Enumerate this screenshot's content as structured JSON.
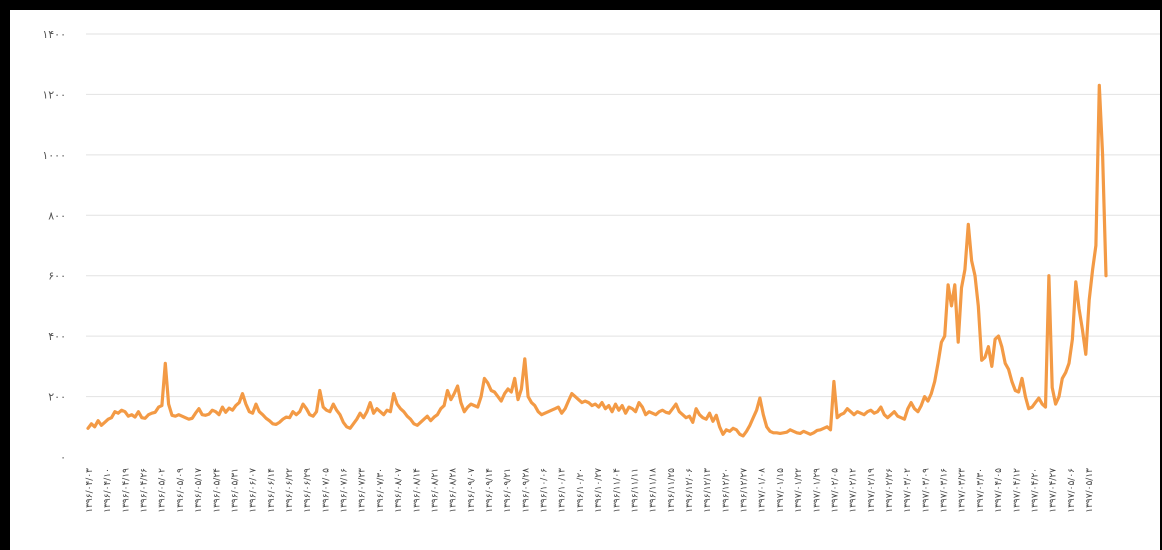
{
  "chart_data": {
    "type": "line",
    "title": "",
    "xlabel": "",
    "ylabel": "",
    "ylim": [
      0,
      1400
    ],
    "grid": true,
    "legend": "none",
    "line_color": "#F39A45",
    "y_ticks": [
      {
        "value": 0,
        "label": "۰"
      },
      {
        "value": 200,
        "label": "۲۰۰"
      },
      {
        "value": 400,
        "label": "۴۰۰"
      },
      {
        "value": 600,
        "label": "۶۰۰"
      },
      {
        "value": 800,
        "label": "۸۰۰"
      },
      {
        "value": 1000,
        "label": "۱۰۰۰"
      },
      {
        "value": 1200,
        "label": "۱۲۰۰"
      },
      {
        "value": 1400,
        "label": "۱۴۰۰"
      }
    ],
    "x_tick_labels": [
      "۱۳۹۶/۰۴/۰۳",
      "۱۳۹۶/۰۴/۱۰",
      "۱۳۹۶/۰۴/۱۹",
      "۱۳۹۶/۰۴/۲۶",
      "۱۳۹۶/۰۵/۰۲",
      "۱۳۹۶/۰۵/۰۹",
      "۱۳۹۶/۰۵/۱۷",
      "۱۳۹۶/۰۵/۲۴",
      "۱۳۹۶/۰۵/۳۱",
      "۱۳۹۶/۰۶/۰۷",
      "۱۳۹۶/۰۶/۱۴",
      "۱۳۹۶/۰۶/۲۲",
      "۱۳۹۶/۰۶/۲۹",
      "۱۳۹۶/۰۷/۰۵",
      "۱۳۹۶/۰۷/۱۶",
      "۱۳۹۶/۰۷/۲۳",
      "۱۳۹۶/۰۷/۳۰",
      "۱۳۹۶/۰۸/۰۷",
      "۱۳۹۶/۰۸/۱۴",
      "۱۳۹۶/۰۸/۲۱",
      "۱۳۹۶/۰۸/۲۸",
      "۱۳۹۶/۰۹/۰۷",
      "۱۳۹۶/۰۹/۱۴",
      "۱۳۹۶/۰۹/۲۱",
      "۱۳۹۶/۰۹/۲۸",
      "۱۳۹۶/۱۰/۰۶",
      "۱۳۹۶/۱۰/۱۳",
      "۱۳۹۶/۱۰/۲۰",
      "۱۳۹۶/۱۰/۲۷",
      "۱۳۹۶/۱۱/۰۴",
      "۱۳۹۶/۱۱/۱۱",
      "۱۳۹۶/۱۱/۱۸",
      "۱۳۹۶/۱۱/۲۵",
      "۱۳۹۶/۱۲/۰۶",
      "۱۳۹۶/۱۲/۱۳",
      "۱۳۹۶/۱۲/۲۰",
      "۱۳۹۶/۱۲/۲۷",
      "۱۳۹۷/۰۱/۰۸",
      "۱۳۹۷/۰۱/۱۵",
      "۱۳۹۷/۰۱/۲۲",
      "۱۳۹۷/۰۱/۲۹",
      "۱۳۹۷/۰۲/۰۵",
      "۱۳۹۷/۰۲/۱۲",
      "۱۳۹۷/۰۲/۱۹",
      "۱۳۹۷/۰۲/۲۶",
      "۱۳۹۷/۰۳/۰۲",
      "۱۳۹۷/۰۳/۰۹",
      "۱۳۹۷/۰۳/۱۶",
      "۱۳۹۷/۰۳/۲۳",
      "۱۳۹۷/۰۳/۳۰",
      "۱۳۹۷/۰۴/۰۵",
      "۱۳۹۷/۰۴/۱۲",
      "۱۳۹۷/۰۴/۲۰",
      "۱۳۹۷/۰۴/۲۷",
      "۱۳۹۷/۰۵/۰۶",
      "۱۳۹۷/۰۵/۱۳"
    ],
    "values": [
      95,
      110,
      100,
      120,
      105,
      115,
      125,
      130,
      150,
      145,
      155,
      150,
      135,
      140,
      132,
      150,
      130,
      128,
      140,
      145,
      148,
      165,
      170,
      310,
      175,
      138,
      135,
      140,
      135,
      130,
      125,
      128,
      145,
      160,
      140,
      138,
      142,
      155,
      150,
      140,
      165,
      148,
      162,
      155,
      170,
      180,
      210,
      175,
      150,
      145,
      175,
      150,
      140,
      128,
      120,
      110,
      108,
      115,
      125,
      132,
      130,
      150,
      140,
      150,
      175,
      160,
      140,
      135,
      150,
      220,
      165,
      155,
      150,
      175,
      155,
      140,
      115,
      100,
      95,
      110,
      125,
      145,
      130,
      150,
      180,
      145,
      160,
      150,
      140,
      155,
      150,
      210,
      175,
      160,
      150,
      135,
      125,
      110,
      105,
      115,
      125,
      135,
      120,
      132,
      140,
      160,
      170,
      220,
      190,
      210,
      235,
      180,
      150,
      165,
      175,
      170,
      165,
      200,
      260,
      245,
      220,
      215,
      200,
      185,
      210,
      225,
      215,
      260,
      190,
      225,
      325,
      200,
      180,
      170,
      150,
      140,
      145,
      150,
      155,
      160,
      165,
      145,
      160,
      185,
      210,
      200,
      190,
      180,
      185,
      180,
      170,
      175,
      165,
      180,
      160,
      170,
      150,
      175,
      155,
      170,
      145,
      165,
      160,
      150,
      180,
      165,
      140,
      150,
      145,
      140,
      150,
      155,
      148,
      145,
      160,
      175,
      150,
      140,
      130,
      135,
      115,
      160,
      140,
      130,
      125,
      145,
      118,
      138,
      100,
      75,
      90,
      85,
      95,
      90,
      75,
      70,
      85,
      105,
      130,
      155,
      195,
      140,
      100,
      85,
      80,
      80,
      78,
      80,
      82,
      90,
      85,
      80,
      78,
      85,
      80,
      75,
      80,
      88,
      90,
      95,
      100,
      90,
      250,
      130,
      140,
      145,
      160,
      150,
      140,
      150,
      145,
      140,
      150,
      155,
      145,
      150,
      165,
      140,
      130,
      140,
      150,
      135,
      130,
      125,
      160,
      180,
      160,
      150,
      170,
      200,
      185,
      210,
      250,
      310,
      380,
      400,
      570,
      500,
      570,
      380,
      560,
      620,
      770,
      650,
      600,
      500,
      320,
      330,
      365,
      300,
      390,
      400,
      365,
      310,
      290,
      250,
      220,
      215,
      260,
      200,
      160,
      165,
      180,
      195,
      175,
      165,
      600,
      230,
      175,
      200,
      260,
      280,
      310,
      390,
      580,
      490,
      420,
      340,
      520,
      620,
      700,
      1230,
      1000,
      600
    ]
  }
}
